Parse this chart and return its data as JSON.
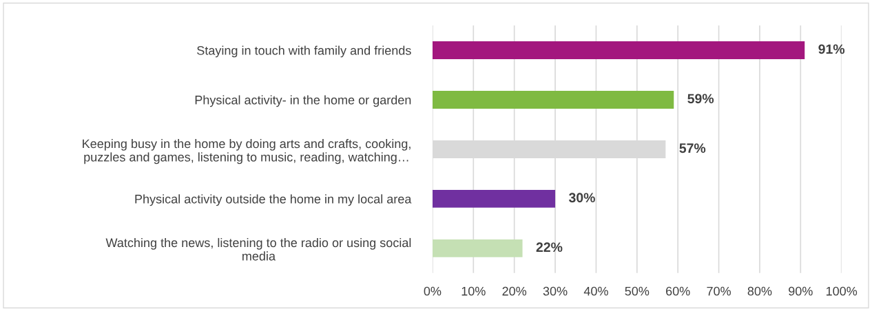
{
  "chart_data": {
    "type": "bar",
    "orientation": "horizontal",
    "categories": [
      "Staying in touch with family and friends",
      "Physical activity- in the home or garden",
      "Keeping busy in the home by doing arts and crafts, cooking,\npuzzles and games, listening to music, reading, watching…",
      "Physical activity outside the home in my local area",
      "Watching the news, listening to the radio or using social\nmedia"
    ],
    "values": [
      91,
      59,
      57,
      30,
      22
    ],
    "colors": [
      "#a3177e",
      "#7fba42",
      "#d9d9d9",
      "#7030a0",
      "#c5e0b4"
    ],
    "value_labels": [
      "91%",
      "59%",
      "57%",
      "30%",
      "22%"
    ],
    "xlim": [
      0,
      100
    ],
    "xticks": [
      {
        "value": 0,
        "label": "0%"
      },
      {
        "value": 10,
        "label": "10%"
      },
      {
        "value": 20,
        "label": "20%"
      },
      {
        "value": 30,
        "label": "30%"
      },
      {
        "value": 40,
        "label": "40%"
      },
      {
        "value": 50,
        "label": "50%"
      },
      {
        "value": 60,
        "label": "60%"
      },
      {
        "value": 70,
        "label": "70%"
      },
      {
        "value": 80,
        "label": "80%"
      },
      {
        "value": 90,
        "label": "90%"
      },
      {
        "value": 100,
        "label": "100%"
      }
    ],
    "grid": "x",
    "legend": false
  }
}
